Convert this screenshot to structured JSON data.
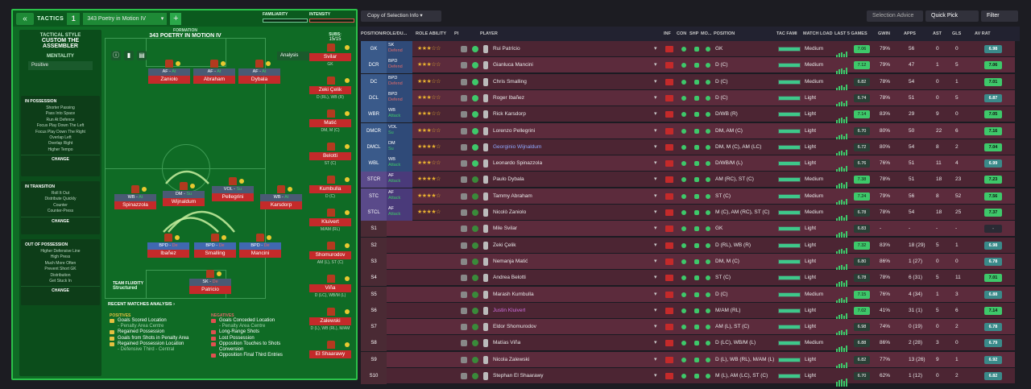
{
  "tactics": {
    "title": "TACTICS",
    "slot": "1",
    "name": "343 Poetry in Motion IV",
    "familiarity_label": "FAMILIARITY",
    "intensity_label": "INTENSITY"
  },
  "style": {
    "label": "TACTICAL STYLE",
    "name": "CUSTOM THE ASSEMBLER",
    "mentality_label": "MENTALITY",
    "mentality": "Positive",
    "in_possession": {
      "title": "IN POSSESSION",
      "items": [
        "Shorter Passing",
        "Pass Into Space",
        "Run At Defence",
        "Focus Play Down The Left",
        "Focus Play Down The Right",
        "Overlap Left",
        "Overlap Right",
        "Higher Tempo"
      ],
      "change": "CHANGE"
    },
    "in_transition": {
      "title": "IN TRANSITION",
      "items": [
        "Roll It Out",
        "Distribute Quickly",
        "Counter",
        "Counter-Press"
      ],
      "change": "CHANGE"
    },
    "out_of_possession": {
      "title": "OUT OF POSSESSION",
      "items": [
        "Higher Defensive Line",
        "High Press",
        "Much More Often",
        "Prevent Short GK",
        "Distribution",
        "Get Stuck In"
      ],
      "change": "CHANGE"
    }
  },
  "formation": {
    "label": "FORMATION",
    "name": "343 POETRY IN MOTION IV",
    "analysis": "Analysis",
    "subs_label": "SUBS:",
    "subs_count": "15/15",
    "fluidity_label": "TEAM FLUIDITY",
    "fluidity": "Structured",
    "players": [
      {
        "role": "AF",
        "duty": "At",
        "name": "Zaniolo"
      },
      {
        "role": "AF",
        "duty": "At",
        "name": "Abraham"
      },
      {
        "role": "AF",
        "duty": "At",
        "name": "Dybala"
      },
      {
        "role": "WB",
        "duty": "At",
        "name": "Spinazzola"
      },
      {
        "role": "DM",
        "duty": "Su",
        "name": "Wijnaldum"
      },
      {
        "role": "VOL",
        "duty": "Su",
        "name": "Pellegrini"
      },
      {
        "role": "WB",
        "duty": "At",
        "name": "Karsdorp"
      },
      {
        "role": "BPD",
        "duty": "De",
        "name": "Ibañez"
      },
      {
        "role": "BPD",
        "duty": "De",
        "name": "Smalling"
      },
      {
        "role": "BPD",
        "duty": "De",
        "name": "Mancini"
      },
      {
        "role": "SK",
        "duty": "De",
        "name": "Patricio"
      }
    ],
    "subs": [
      {
        "name": "Svilar",
        "pos": "GK"
      },
      {
        "name": "Zeki Çelik",
        "pos": "D (RL), WB (R)"
      },
      {
        "name": "Matić",
        "pos": "DM, M (C)"
      },
      {
        "name": "Belotti",
        "pos": "ST (C)"
      },
      {
        "name": "Kumbulla",
        "pos": "D (C)"
      },
      {
        "name": "Kluivert",
        "pos": "M/AM (RL)"
      },
      {
        "name": "Shomurodov",
        "pos": "AM (L), ST (C)"
      },
      {
        "name": "Viña",
        "pos": "D (LC), WB/M (L)"
      },
      {
        "name": "Zalewski",
        "pos": "D (L), WB (RL), M/AM"
      },
      {
        "name": "El Shaarawy",
        "pos": ""
      }
    ]
  },
  "analysis": {
    "title": "RECENT MATCHES ANALYSIS",
    "pos_title": "POSITIVES",
    "neg_title": "NEGATIVES",
    "positives": [
      {
        "t": "Goals Scored Location",
        "s": "- Penalty Area Centre"
      },
      {
        "t": "Regained Possession",
        "s": ""
      },
      {
        "t": "Goals from Shots in Penalty Area",
        "s": ""
      },
      {
        "t": "Regained Possession Location",
        "s": "- Defensive Third - Central"
      }
    ],
    "negatives": [
      {
        "t": "Goals Conceded Location",
        "s": "- Penalty Area Centre"
      },
      {
        "t": "Long-Range Shots",
        "s": ""
      },
      {
        "t": "Lost Possession",
        "s": ""
      },
      {
        "t": "Opposition Touches to Shots Conversion",
        "s": ""
      },
      {
        "t": "Opposition Final Third Entries",
        "s": ""
      }
    ]
  },
  "toolbar": {
    "copy": "Copy of Selection Info",
    "selection_advice": "Selection Advice",
    "quick_pick": "Quick Pick",
    "filter": "Filter"
  },
  "columns": [
    "POSITION/ROLE/DU...",
    "ROLE ABILITY",
    "PI",
    "PLAYER",
    "INF",
    "CON",
    "SHP",
    "MO...",
    "POSITION",
    "TAC FAMI",
    "MATCH LOAD",
    "LAST 5 GAMES",
    "GWIN",
    "APPS",
    "AST",
    "GLS",
    "AV RAT"
  ],
  "rows": [
    {
      "pos": "GK",
      "role": "SK",
      "duty": "Defend",
      "stars": "★★★☆☆",
      "name": "Rui Patrício",
      "ppos": "GK",
      "load": "Medium",
      "form": "7.06",
      "gwin": "79%",
      "apps": "56",
      "ast": "0",
      "gls": "0",
      "av": "6.98"
    },
    {
      "pos": "DCR",
      "role": "BPD",
      "duty": "Defend",
      "stars": "★★★☆☆",
      "name": "Gianluca Mancini",
      "ppos": "D (C)",
      "load": "Medium",
      "form": "7.12",
      "gwin": "79%",
      "apps": "47",
      "ast": "1",
      "gls": "5",
      "av": "7.06"
    },
    {
      "pos": "DC",
      "role": "BPD",
      "duty": "Defend",
      "stars": "★★★☆☆",
      "name": "Chris Smalling",
      "ppos": "D (C)",
      "load": "Medium",
      "form": "6.82",
      "gwin": "78%",
      "apps": "54",
      "ast": "0",
      "gls": "1",
      "av": "7.01"
    },
    {
      "pos": "DCL",
      "role": "BPD",
      "duty": "Defend",
      "stars": "★★★☆☆",
      "name": "Roger Ibañez",
      "ppos": "D (C)",
      "load": "Light",
      "form": "6.74",
      "gwin": "78%",
      "apps": "51",
      "ast": "0",
      "gls": "5",
      "av": "6.87"
    },
    {
      "pos": "WBR",
      "role": "WB",
      "duty": "Attack",
      "stars": "★★★☆☆",
      "name": "Rick Karsdorp",
      "ppos": "D/WB (R)",
      "load": "Light",
      "form": "7.14",
      "gwin": "83%",
      "apps": "29",
      "ast": "9",
      "gls": "0",
      "av": "7.05"
    },
    {
      "pos": "DMCR",
      "role": "VOL",
      "duty": "Su",
      "stars": "★★★☆☆",
      "name": "Lorenzo Pellegrini",
      "ppos": "DM, AM (C)",
      "load": "Light",
      "form": "6.70",
      "gwin": "80%",
      "apps": "50",
      "ast": "22",
      "gls": "6",
      "av": "7.16"
    },
    {
      "pos": "DMCL",
      "role": "DM",
      "duty": "Su",
      "stars": "★★★★☆",
      "name": "Georginio Wijnaldum",
      "ppos": "DM, M (C), AM (LC)",
      "load": "Light",
      "form": "6.72",
      "gwin": "80%",
      "apps": "54",
      "ast": "8",
      "gls": "2",
      "av": "7.04"
    },
    {
      "pos": "WBL",
      "role": "WB",
      "duty": "Attack",
      "stars": "★★★☆☆",
      "name": "Leonardo Spinazzola",
      "ppos": "D/WB/M (L)",
      "load": "Light",
      "form": "6.76",
      "gwin": "76%",
      "apps": "51",
      "ast": "11",
      "gls": "4",
      "av": "6.99"
    },
    {
      "pos": "STCR",
      "role": "AF",
      "duty": "Attack",
      "stars": "★★★★☆",
      "name": "Paulo Dybala",
      "ppos": "AM (RC), ST (C)",
      "load": "Medium",
      "form": "7.38",
      "gwin": "78%",
      "apps": "51",
      "ast": "18",
      "gls": "23",
      "av": "7.23"
    },
    {
      "pos": "STC",
      "role": "AF",
      "duty": "Attack",
      "stars": "★★★★☆",
      "name": "Tammy Abraham",
      "ppos": "ST (C)",
      "load": "Medium",
      "form": "7.24",
      "gwin": "79%",
      "apps": "56",
      "ast": "8",
      "gls": "52",
      "av": "7.56"
    },
    {
      "pos": "STCL",
      "role": "AF",
      "duty": "Attack",
      "stars": "★★★★☆",
      "name": "Nicolò Zaniolo",
      "ppos": "M (C), AM (RC), ST (C)",
      "load": "Medium",
      "form": "6.78",
      "gwin": "78%",
      "apps": "54",
      "ast": "18",
      "gls": "25",
      "av": "7.37"
    },
    {
      "pos": "S1",
      "role": "",
      "duty": "",
      "stars": "",
      "name": "Mile Svilar",
      "ppos": "GK",
      "load": "Light",
      "form": "6.83",
      "gwin": "-",
      "apps": "-",
      "ast": "-",
      "gls": "-",
      "av": "-"
    },
    {
      "pos": "S2",
      "role": "",
      "duty": "",
      "stars": "",
      "name": "Zeki Çelik",
      "ppos": "D (RL), WB (R)",
      "load": "Light",
      "form": "7.32",
      "gwin": "83%",
      "apps": "18 (29)",
      "ast": "5",
      "gls": "1",
      "av": "6.98"
    },
    {
      "pos": "S3",
      "role": "",
      "duty": "",
      "stars": "",
      "name": "Nemanja Matić",
      "ppos": "DM, M (C)",
      "load": "Light",
      "form": "6.80",
      "gwin": "86%",
      "apps": "1 (27)",
      "ast": "0",
      "gls": "0",
      "av": "6.78"
    },
    {
      "pos": "S4",
      "role": "",
      "duty": "",
      "stars": "",
      "name": "Andrea Belotti",
      "ppos": "ST (C)",
      "load": "Light",
      "form": "6.78",
      "gwin": "78%",
      "apps": "6 (31)",
      "ast": "5",
      "gls": "11",
      "av": "7.01"
    },
    {
      "pos": "S5",
      "role": "",
      "duty": "",
      "stars": "",
      "name": "Marash Kumbulla",
      "ppos": "D (C)",
      "load": "Medium",
      "form": "7.15",
      "gwin": "76%",
      "apps": "4 (34)",
      "ast": "1",
      "gls": "3",
      "av": "6.88"
    },
    {
      "pos": "S6",
      "role": "",
      "duty": "",
      "stars": "",
      "name": "Justin Kluivert",
      "ppos": "M/AM (RL)",
      "load": "Light",
      "form": "7.02",
      "gwin": "41%",
      "apps": "31 (1)",
      "ast": "5",
      "gls": "6",
      "av": "7.14"
    },
    {
      "pos": "S7",
      "role": "",
      "duty": "",
      "stars": "",
      "name": "Eldor Shomurodov",
      "ppos": "AM (L), ST (C)",
      "load": "Light",
      "form": "6.98",
      "gwin": "74%",
      "apps": "0 (19)",
      "ast": "0",
      "gls": "2",
      "av": "6.78"
    },
    {
      "pos": "S8",
      "role": "",
      "duty": "",
      "stars": "",
      "name": "Matías Viña",
      "ppos": "D (LC), WB/M (L)",
      "load": "Medium",
      "form": "6.88",
      "gwin": "86%",
      "apps": "2 (28)",
      "ast": "3",
      "gls": "0",
      "av": "6.79"
    },
    {
      "pos": "S9",
      "role": "",
      "duty": "",
      "stars": "",
      "name": "Nicola Zalewski",
      "ppos": "D (L), WB (RL), M/AM (L)",
      "load": "Light",
      "form": "6.82",
      "gwin": "77%",
      "apps": "13 (26)",
      "ast": "9",
      "gls": "1",
      "av": "6.92"
    },
    {
      "pos": "S10",
      "role": "",
      "duty": "",
      "stars": "",
      "name": "Stephan El Shaarawy",
      "ppos": "M (L), AM (LC), ST (C)",
      "load": "Light",
      "form": "6.70",
      "gwin": "62%",
      "apps": "1 (12)",
      "ast": "0",
      "gls": "2",
      "av": "6.82"
    }
  ]
}
